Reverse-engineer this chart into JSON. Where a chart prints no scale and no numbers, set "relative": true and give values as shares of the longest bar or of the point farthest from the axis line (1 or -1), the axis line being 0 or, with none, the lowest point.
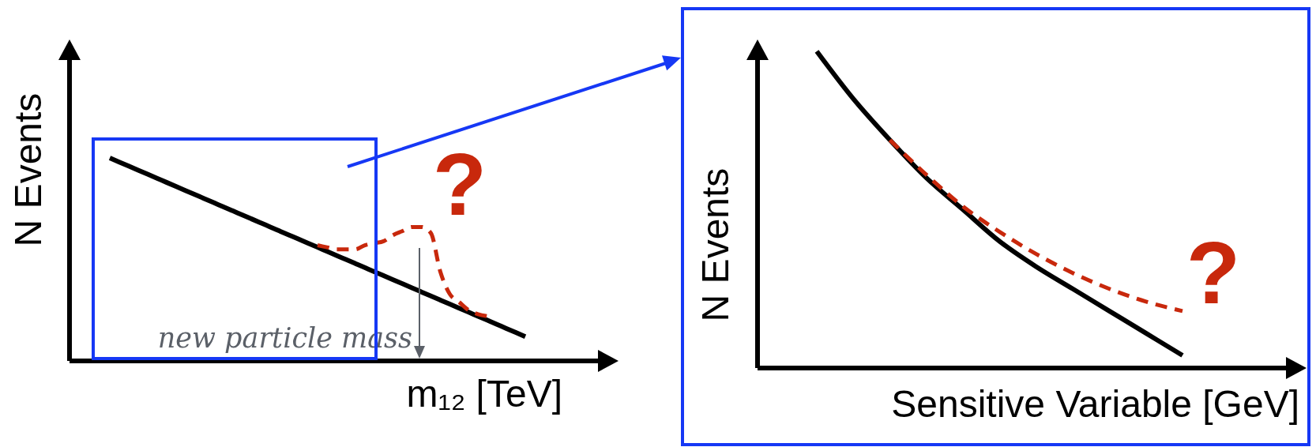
{
  "chart_data": [
    {
      "type": "line",
      "ylabel": "N Events",
      "xlabel": "m₁₂ [TeV]",
      "relative": true,
      "categories": [
        null,
        null,
        null,
        null,
        null,
        null,
        null,
        null,
        null,
        null,
        null,
        null,
        null,
        null,
        null,
        null,
        null,
        null,
        null,
        null,
        null,
        null,
        null,
        null,
        null,
        null,
        null,
        null,
        null,
        null,
        null,
        null,
        null,
        null,
        null,
        null,
        null,
        null,
        null,
        null,
        null,
        null,
        null,
        null,
        null
      ],
      "series": [
        {
          "color": "#000000",
          "line_style": "solid",
          "values": [
            1,
            0.98,
            0.96,
            0.94,
            0.92,
            0.9,
            0.88,
            0.86,
            0.84,
            0.82,
            0.8,
            0.78,
            0.76,
            0.74,
            0.72,
            0.7,
            0.68,
            0.66,
            0.64,
            0.62,
            0.6,
            0.58,
            0.56,
            0.54,
            0.52,
            0.5,
            0.48,
            0.46,
            0.44,
            0.42,
            0.4,
            0.38,
            0.36,
            0.34,
            0.32,
            0.3,
            0.28,
            0.26,
            0.24,
            0.22,
            0.2,
            0.18,
            0.16,
            0.14,
            0.12
          ]
        },
        {
          "color": "#c8280c",
          "line_style": "dashed",
          "values": [
            null,
            null,
            null,
            null,
            null,
            null,
            null,
            null,
            null,
            null,
            null,
            null,
            null,
            null,
            null,
            null,
            null,
            null,
            null,
            null,
            null,
            null,
            0.57,
            0.56,
            0.55,
            0.55,
            0.55,
            0.57,
            0.58,
            0.59,
            0.62,
            0.64,
            0.66,
            0.66,
            0.63,
            0.44,
            0.33,
            0.29,
            0.25,
            0.23,
            0.22,
            null,
            null,
            null,
            null
          ]
        }
      ],
      "annotations": [
        "?",
        "new particle mass"
      ]
    },
    {
      "type": "line",
      "ylabel": "N Events",
      "xlabel": "Sensitive Variable [GeV]",
      "relative": true,
      "categories": [
        null,
        null,
        null,
        null,
        null,
        null,
        null,
        null,
        null,
        null,
        null
      ],
      "series": [
        {
          "color": "#000000",
          "line_style": "solid",
          "values": [
            1,
            0.85,
            0.72,
            0.6,
            0.5,
            0.4,
            0.32,
            0.25,
            0.18,
            0.11,
            0.04
          ]
        },
        {
          "color": "#c8280c",
          "line_style": "dashed",
          "values": [
            null,
            null,
            0.72,
            0.61,
            0.51,
            0.43,
            0.36,
            0.3,
            0.25,
            0.21,
            0.18
          ]
        }
      ],
      "annotations": [
        "?"
      ]
    }
  ]
}
